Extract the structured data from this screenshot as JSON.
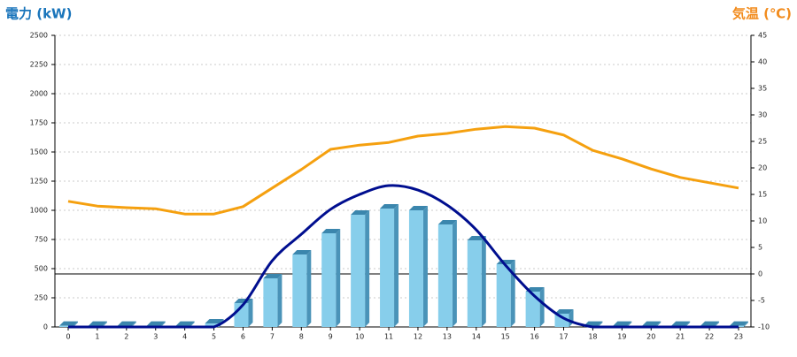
{
  "chart_data": {
    "type": "combo",
    "y_label": "電力 (kW)",
    "y_label_color": "#1a75bb",
    "y2_label": "気温 (℃)",
    "y2_label_color": "#f28c1e",
    "categories": [
      "0",
      "1",
      "2",
      "3",
      "4",
      "5",
      "6",
      "7",
      "8",
      "9",
      "10",
      "11",
      "12",
      "13",
      "14",
      "15",
      "16",
      "17",
      "18",
      "19",
      "20",
      "21",
      "22",
      "23"
    ],
    "ylim": [
      0,
      2500
    ],
    "yticks": [
      0,
      250,
      500,
      750,
      1000,
      1250,
      1500,
      1750,
      2000,
      2250,
      2500
    ],
    "y2lim": [
      -10,
      45
    ],
    "y2ticks": [
      -10,
      -5,
      0,
      5,
      10,
      15,
      20,
      25,
      30,
      35,
      40,
      45
    ],
    "grid": true,
    "series": [
      {
        "type": "bar",
        "color": "#87ceeb",
        "values": [
          10,
          10,
          10,
          10,
          10,
          30,
          205,
          417,
          621,
          803,
          962,
          1015,
          1000,
          879,
          742,
          538,
          303,
          114,
          10,
          10,
          10,
          10,
          10,
          10
        ]
      },
      {
        "type": "line",
        "color": "#000e8f",
        "values": [
          0,
          0,
          0,
          0,
          0,
          0,
          190,
          568,
          795,
          1008,
          1136,
          1212,
          1174,
          1045,
          833,
          530,
          265,
          75,
          0,
          0,
          0,
          0,
          0,
          0
        ]
      },
      {
        "type": "line",
        "axis": "y2",
        "color": "#f5a00f",
        "values": [
          13.7,
          12.8,
          12.5,
          12.3,
          11.3,
          11.3,
          12.7,
          16.2,
          19.7,
          23.5,
          24.3,
          24.8,
          26,
          26.5,
          27.3,
          27.8,
          27.5,
          26.2,
          23.3,
          21.7,
          19.8,
          18.2,
          17.2,
          16.2
        ]
      }
    ]
  }
}
